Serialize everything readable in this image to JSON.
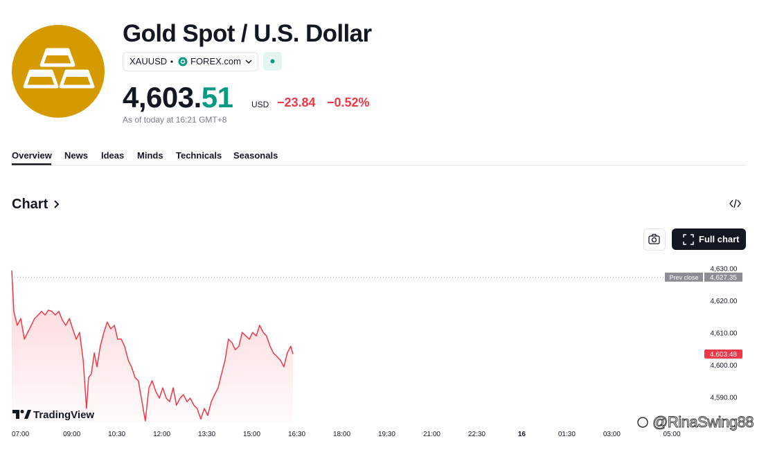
{
  "header": {
    "title": "Gold Spot / U.S. Dollar",
    "symbol": "XAUUSD",
    "exchange": "FOREX.com",
    "price_main": "4,603.",
    "price_decimals": "51",
    "currency": "USD",
    "change": "−23.84",
    "change_percent": "−0.52%",
    "timestamp": "As of today at 16:21 GMT+8"
  },
  "tabs": [
    "Overview",
    "News",
    "Ideas",
    "Minds",
    "Technicals",
    "Seasonals"
  ],
  "section_title": "Chart",
  "full_chart_button": "Full chart",
  "chart_data": {
    "type": "line",
    "brand": "TradingView",
    "x": [
      7.0,
      7.07,
      7.18,
      7.3,
      7.42,
      7.53,
      7.65,
      7.76,
      7.88,
      7.99,
      8.11,
      8.22,
      8.34,
      8.45,
      8.57,
      8.68,
      8.8,
      8.92,
      9.03,
      9.15,
      9.26,
      9.38,
      9.49,
      9.56,
      9.65,
      9.75,
      9.84,
      9.95,
      10.07,
      10.18,
      10.3,
      10.42,
      10.53,
      10.65,
      10.76,
      10.88,
      10.99,
      11.11,
      11.22,
      11.34,
      11.45,
      11.57,
      11.68,
      11.8,
      11.92,
      12.03,
      12.15,
      12.26,
      12.38,
      12.49,
      12.61,
      12.72,
      12.84,
      12.95,
      13.07,
      13.18,
      13.3,
      13.42,
      13.53,
      13.65,
      13.76,
      13.88,
      13.99,
      14.11,
      14.22,
      14.34,
      14.45,
      14.57,
      14.68,
      14.8,
      14.92,
      15.03,
      15.15,
      15.26,
      15.38,
      15.49,
      15.61,
      15.72,
      15.84,
      15.95,
      16.07,
      16.18,
      16.3,
      16.37
    ],
    "series": [
      {
        "name": "XAUUSD",
        "color": "#f23645",
        "values": [
          4629.4,
          4616.7,
          4612.4,
          4614.5,
          4608.1,
          4610.2,
          4612.4,
          4614.5,
          4615.6,
          4616.7,
          4615.6,
          4617.1,
          4616.7,
          4615.6,
          4616.7,
          4614.1,
          4612.4,
          4614.5,
          4611.3,
          4608.1,
          4610.2,
          4601.6,
          4586.6,
          4596.2,
          4597.3,
          4603.8,
          4599.5,
          4605.9,
          4610.2,
          4613.4,
          4611.3,
          4612.4,
          4608.1,
          4608.1,
          4605.9,
          4601.6,
          4599.5,
          4596.2,
          4595.2,
          4588.7,
          4582.7,
          4593.0,
          4595.2,
          4591.9,
          4589.8,
          4593.0,
          4589.8,
          4588.7,
          4593.0,
          4587.6,
          4589.8,
          4590.9,
          4588.7,
          4589.8,
          4587.6,
          4586.6,
          4583.3,
          4586.6,
          4584.4,
          4588.7,
          4590.9,
          4593.0,
          4597.3,
          4601.6,
          4608.1,
          4607.0,
          4604.8,
          4605.9,
          4610.2,
          4609.1,
          4608.1,
          4610.2,
          4609.1,
          4612.4,
          4610.2,
          4609.1,
          4605.9,
          4603.8,
          4602.7,
          4601.6,
          4599.5,
          4603.8,
          4605.9,
          4603.48
        ]
      }
    ],
    "xlim": [
      7,
      29.9
    ],
    "xticks": [
      {
        "value": 7,
        "label": "07:00"
      },
      {
        "value": 9,
        "label": "09:00"
      },
      {
        "value": 10.5,
        "label": "10:30"
      },
      {
        "value": 12,
        "label": "12:00"
      },
      {
        "value": 13.5,
        "label": "13:30"
      },
      {
        "value": 15,
        "label": "15:00"
      },
      {
        "value": 16.5,
        "label": "16:30"
      },
      {
        "value": 18,
        "label": "18:00"
      },
      {
        "value": 19.5,
        "label": "19:30"
      },
      {
        "value": 21,
        "label": "21:00"
      },
      {
        "value": 22.5,
        "label": "22:30"
      },
      {
        "value": 24,
        "label": "16"
      },
      {
        "value": 25.5,
        "label": "01:30"
      },
      {
        "value": 27,
        "label": "03:00"
      },
      {
        "value": 29,
        "label": "05:00"
      }
    ],
    "ylim": [
      4582.3,
      4631.7
    ],
    "yticks": [
      {
        "value": 4590,
        "label": "4,590.00"
      },
      {
        "value": 4600,
        "label": "4,600.00"
      },
      {
        "value": 4610,
        "label": "4,610.00"
      },
      {
        "value": 4620,
        "label": "4,620.00"
      },
      {
        "value": 4630,
        "label": "4,630.00"
      }
    ],
    "grid": false,
    "prev_close": {
      "label": "Prev close",
      "value": 4627.35,
      "value_label": "4,627.35"
    },
    "last": {
      "value": 4603.48,
      "label": "4,603.48"
    }
  },
  "watermark": "@RinaSwing88"
}
